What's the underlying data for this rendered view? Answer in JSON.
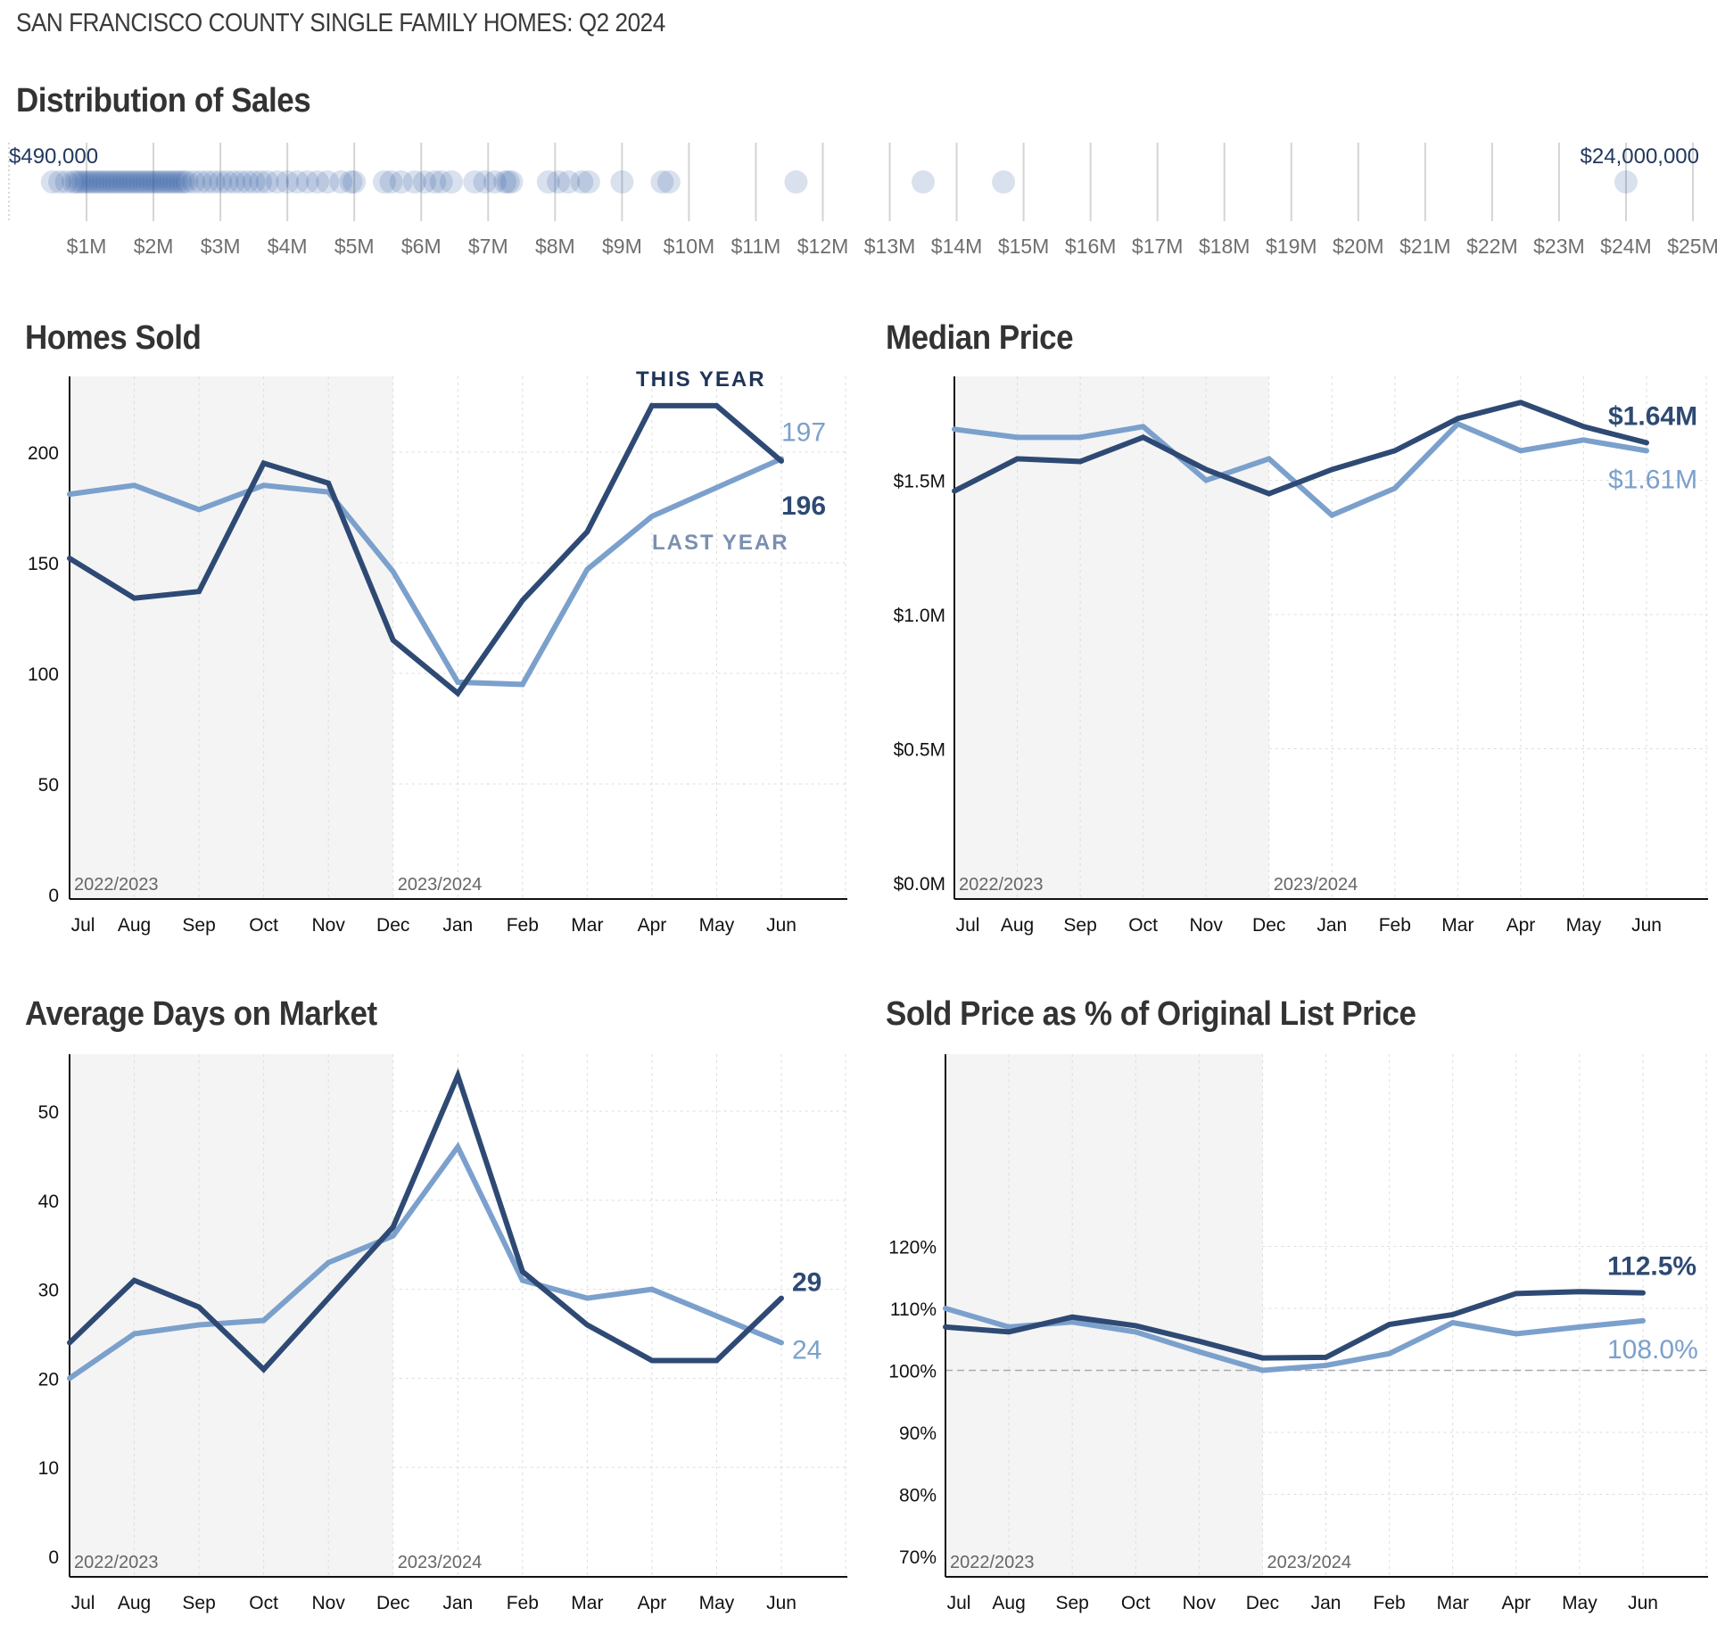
{
  "page": {
    "header": "SAN FRANCISCO COUNTY SINGLE FAMILY HOMES: Q2 2024"
  },
  "colors": {
    "this_year": "#2e4a74",
    "last_year": "#7ba0cc",
    "shade": "#f4f4f4",
    "grid": "#dddddd",
    "axis": "#111111",
    "dot": "#2c5aa0",
    "dot_dark": "#0a1a3a"
  },
  "chart_data": [
    {
      "id": "distribution",
      "type": "scatter",
      "title": "Distribution of Sales",
      "xlabel": "",
      "xlim": [
        0,
        25
      ],
      "x_unit": "millions USD",
      "tick_labels": [
        "$1M",
        "$2M",
        "$3M",
        "$4M",
        "$5M",
        "$6M",
        "$7M",
        "$8M",
        "$9M",
        "$10M",
        "$11M",
        "$12M",
        "$13M",
        "$14M",
        "$15M",
        "$16M",
        "$17M",
        "$18M",
        "$19M",
        "$20M",
        "$21M",
        "$22M",
        "$23M",
        "$24M",
        "$25M"
      ],
      "min_label": "$490,000",
      "max_label": "$24,000,000",
      "grid": true,
      "values": [
        0.49,
        0.6,
        0.7,
        0.8,
        0.85,
        0.9,
        0.95,
        1.0,
        1.05,
        1.1,
        1.15,
        1.2,
        1.25,
        1.3,
        1.35,
        1.4,
        1.45,
        1.5,
        1.55,
        1.6,
        1.65,
        1.7,
        1.75,
        1.8,
        1.85,
        1.9,
        1.95,
        2.0,
        2.05,
        2.1,
        2.15,
        2.2,
        2.25,
        2.3,
        2.35,
        2.4,
        2.45,
        2.5,
        2.6,
        2.7,
        2.8,
        2.9,
        3.0,
        3.1,
        3.2,
        3.3,
        3.4,
        3.5,
        3.6,
        3.7,
        3.85,
        4.0,
        4.15,
        4.3,
        4.45,
        4.6,
        4.8,
        4.95,
        5.0,
        5.45,
        5.55,
        5.7,
        5.9,
        6.05,
        6.2,
        6.3,
        6.45,
        6.8,
        6.95,
        7.1,
        7.25,
        7.3,
        7.35,
        7.9,
        8.05,
        8.2,
        8.4,
        8.5,
        9.0,
        9.6,
        9.7,
        11.6,
        13.5,
        14.7,
        24.0
      ]
    },
    {
      "id": "homes_sold",
      "type": "line",
      "title": "Homes Sold",
      "categories": [
        "Jul",
        "Aug",
        "Sep",
        "Oct",
        "Nov",
        "Dec",
        "Jan",
        "Feb",
        "Mar",
        "Apr",
        "May",
        "Jun"
      ],
      "ylim": [
        0,
        230
      ],
      "yticks": [
        0,
        50,
        100,
        150,
        200
      ],
      "ytick_labels": [
        "0",
        "50",
        "100",
        "150",
        "200"
      ],
      "season_labels": [
        "2022/2023",
        "2023/2024"
      ],
      "series": [
        {
          "name": "This Year",
          "values": [
            152,
            134,
            137,
            195,
            186,
            115,
            91,
            133,
            164,
            221,
            221,
            196
          ],
          "end_label": "196"
        },
        {
          "name": "Last Year",
          "values": [
            181,
            185,
            174,
            185,
            182,
            146,
            96,
            95,
            147,
            171,
            184,
            197
          ],
          "end_label": "197"
        }
      ],
      "legend": {
        "this_year": "THIS YEAR",
        "last_year": "LAST YEAR"
      }
    },
    {
      "id": "median_price",
      "type": "line",
      "title": "Median Price",
      "categories": [
        "Jul",
        "Aug",
        "Sep",
        "Oct",
        "Nov",
        "Dec",
        "Jan",
        "Feb",
        "Mar",
        "Apr",
        "May",
        "Jun"
      ],
      "ylim": [
        0,
        1.88
      ],
      "y_unit": "millions USD",
      "yticks": [
        0,
        0.5,
        1.0,
        1.5
      ],
      "ytick_labels": [
        "$0.0M",
        "$0.5M",
        "$1.0M",
        "$1.5M"
      ],
      "season_labels": [
        "2022/2023",
        "2023/2024"
      ],
      "series": [
        {
          "name": "This Year",
          "values": [
            1.46,
            1.58,
            1.57,
            1.66,
            1.54,
            1.45,
            1.54,
            1.61,
            1.73,
            1.79,
            1.7,
            1.64
          ],
          "end_label": "$1.64M"
        },
        {
          "name": "Last Year",
          "values": [
            1.69,
            1.66,
            1.66,
            1.7,
            1.5,
            1.58,
            1.37,
            1.47,
            1.71,
            1.61,
            1.65,
            1.61
          ],
          "end_label": "$1.61M"
        }
      ]
    },
    {
      "id": "days_on_market",
      "type": "line",
      "title": "Average Days on Market",
      "categories": [
        "Jul",
        "Aug",
        "Sep",
        "Oct",
        "Nov",
        "Dec",
        "Jan",
        "Feb",
        "Mar",
        "Apr",
        "May",
        "Jun"
      ],
      "ylim": [
        0,
        56
      ],
      "yticks": [
        0,
        10,
        20,
        30,
        40,
        50
      ],
      "ytick_labels": [
        "0",
        "10",
        "20",
        "30",
        "40",
        "50"
      ],
      "season_labels": [
        "2022/2023",
        "2023/2024"
      ],
      "series": [
        {
          "name": "This Year",
          "values": [
            24,
            31,
            28,
            21,
            29,
            37,
            54,
            32,
            26,
            22,
            22,
            29
          ],
          "end_label": "29"
        },
        {
          "name": "Last Year",
          "values": [
            20,
            25,
            26,
            26.5,
            33,
            36,
            46,
            31,
            29,
            30,
            27,
            24
          ],
          "end_label": "24"
        }
      ]
    },
    {
      "id": "sold_vs_list",
      "type": "line",
      "title": "Sold Price as % of Original List Price",
      "categories": [
        "Jul",
        "Aug",
        "Sep",
        "Oct",
        "Nov",
        "Dec",
        "Jan",
        "Feb",
        "Mar",
        "Apr",
        "May",
        "Jun"
      ],
      "ylim": [
        70,
        130
      ],
      "yticks": [
        70,
        80,
        90,
        100,
        110,
        120
      ],
      "ytick_labels": [
        "70%",
        "80%",
        "90%",
        "100%",
        "110%",
        "120%"
      ],
      "reference_line": 100,
      "season_labels": [
        "2022/2023",
        "2023/2024"
      ],
      "series": [
        {
          "name": "This Year",
          "values": [
            107,
            106.2,
            108.6,
            107.2,
            104.7,
            102,
            102.1,
            107.4,
            109,
            112.4,
            112.7,
            112.5
          ],
          "end_label": "112.5%"
        },
        {
          "name": "Last Year",
          "values": [
            110,
            107,
            107.8,
            106.2,
            103,
            100,
            100.8,
            102.7,
            107.7,
            105.9,
            107,
            108.0
          ],
          "end_label": "108.0%"
        }
      ]
    }
  ]
}
